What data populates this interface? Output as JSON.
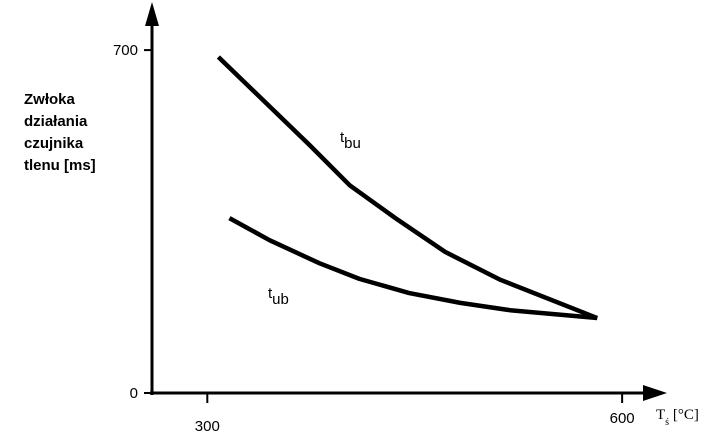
{
  "chart_data": {
    "type": "line",
    "y_label_lines": [
      "Zwłoka",
      "działania",
      "czujnika",
      "tlenu [ms]"
    ],
    "x_label": "Tś [°C]",
    "xlim": [
      260,
      631
    ],
    "xticks": [
      300,
      600
    ],
    "ylim": [
      0,
      790
    ],
    "yticks": [
      0,
      700
    ],
    "grid": false,
    "series": [
      {
        "name": "tbu",
        "color": "#000000",
        "x": [
          308,
          374,
          403,
          436,
          472,
          512,
          582
        ],
        "values": [
          686,
          506,
          424,
          357,
          288,
          231,
          153
        ]
      },
      {
        "name": "tub",
        "color": "#000000",
        "x": [
          316,
          345,
          381,
          410,
          446,
          483,
          519,
          582
        ],
        "values": [
          357,
          312,
          265,
          233,
          204,
          184,
          169,
          153
        ]
      }
    ]
  }
}
